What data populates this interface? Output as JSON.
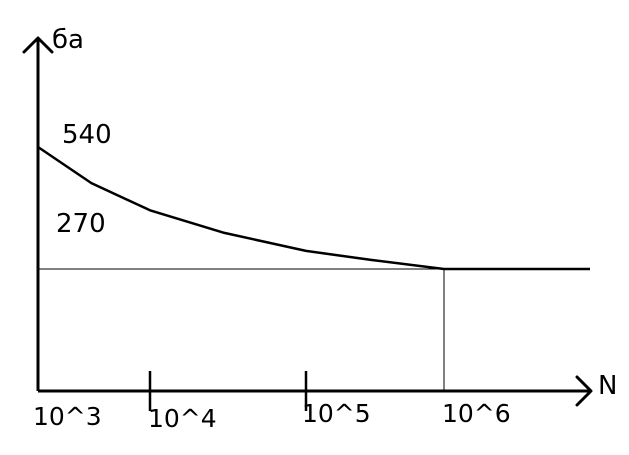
{
  "chart_data": {
    "type": "line",
    "ylabel": "ба",
    "xlabel": "N",
    "x_scale": "log",
    "x_ticks": [
      {
        "value": 1000,
        "label": "10^3"
      },
      {
        "value": 10000,
        "label": "10^4"
      },
      {
        "value": 100000,
        "label": "10^5"
      },
      {
        "value": 1000000,
        "label": "10^6"
      }
    ],
    "y_labels": [
      {
        "value": 540,
        "label": "540"
      },
      {
        "value": 270,
        "label": "270"
      }
    ],
    "ylim": [
      0,
      860
    ],
    "series": [
      {
        "x": [
          1000,
          3000,
          10000,
          30000,
          100000,
          300000,
          1000000,
          10000000
        ],
        "y": [
          540,
          460,
          400,
          350,
          310,
          290,
          270,
          270
        ]
      }
    ],
    "reference_lines": [
      {
        "orientation": "horizontal",
        "y": 270
      },
      {
        "orientation": "vertical",
        "x": 1000000
      }
    ],
    "grid": false,
    "legend": "none",
    "colors": {
      "curve": "#000000",
      "axis": "#000000"
    }
  }
}
